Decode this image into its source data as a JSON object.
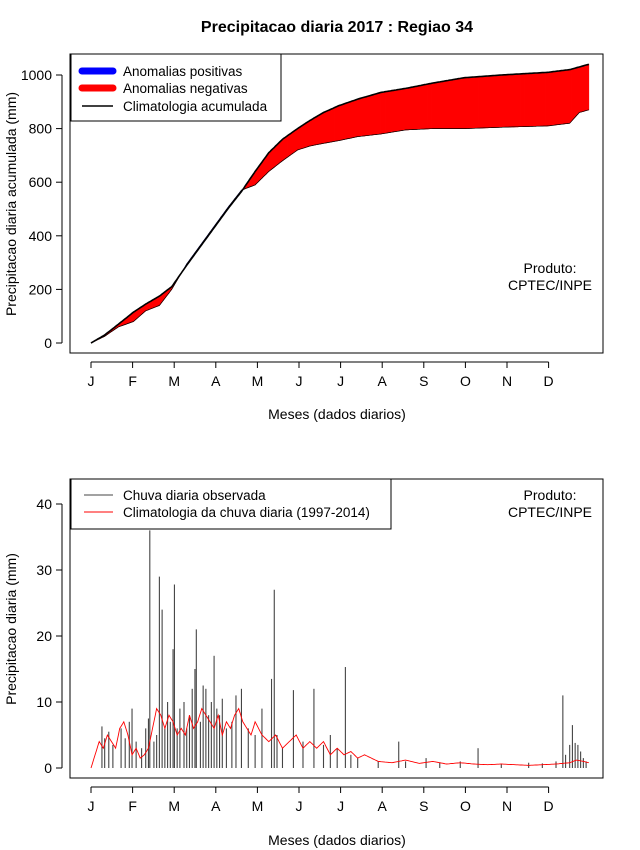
{
  "title": "Precipitacao diaria 2017 : Regiao 34",
  "product_label": [
    "Produto:",
    "CPTEC/INPE"
  ],
  "month_labels": [
    "J",
    "F",
    "M",
    "A",
    "M",
    "J",
    "J",
    "A",
    "S",
    "O",
    "N",
    "D"
  ],
  "chart_data": [
    {
      "type": "area",
      "ylabel": "Precipitacao diaria acumulada (mm)",
      "xlabel": "Meses (dados diarios)",
      "ylim": [
        0,
        1050
      ],
      "yticks": [
        0,
        200,
        400,
        600,
        800,
        1000
      ],
      "legend": {
        "placement": "top-left",
        "entries": [
          {
            "label": "Anomalias positivas",
            "color": "#0000ff"
          },
          {
            "label": "Anomalias negativas",
            "color": "#ff0000"
          },
          {
            "label": "Climatologia acumulada",
            "color": "#000000"
          }
        ]
      },
      "climatology_cumulative": {
        "day": [
          0,
          10,
          20,
          31,
          40,
          50,
          59,
          70,
          80,
          90,
          100,
          110,
          120,
          130,
          140,
          151,
          160,
          170,
          181,
          195,
          212,
          230,
          250,
          273,
          300,
          334,
          350,
          364
        ],
        "mm": [
          0,
          30,
          70,
          115,
          145,
          175,
          210,
          290,
          360,
          430,
          500,
          565,
          640,
          710,
          760,
          800,
          830,
          860,
          885,
          910,
          935,
          950,
          970,
          990,
          1000,
          1010,
          1020,
          1040
        ]
      },
      "observed_cumulative": {
        "day": [
          0,
          10,
          20,
          31,
          40,
          50,
          59,
          70,
          80,
          90,
          100,
          110,
          120,
          130,
          140,
          151,
          160,
          170,
          181,
          195,
          212,
          230,
          250,
          273,
          300,
          334,
          350,
          357,
          364
        ],
        "mm": [
          0,
          25,
          60,
          80,
          120,
          140,
          200,
          295,
          365,
          435,
          505,
          570,
          590,
          640,
          680,
          720,
          735,
          745,
          755,
          770,
          780,
          795,
          800,
          800,
          805,
          810,
          820,
          860,
          870
        ]
      }
    },
    {
      "type": "bar",
      "ylabel": "Precipitacao diaria (mm)",
      "xlabel": "Meses (dados diarios)",
      "ylim": [
        0,
        44
      ],
      "yticks": [
        0,
        10,
        20,
        30,
        40
      ],
      "legend": {
        "placement": "top-left",
        "entries": [
          {
            "label": "Chuva diaria observada",
            "color": "#444444"
          },
          {
            "label": "Climatologia da chuva diaria (1997-2014)",
            "color": "#ff0000"
          }
        ]
      },
      "observed_daily": [
        [
          8,
          6.3
        ],
        [
          10,
          4.5
        ],
        [
          13,
          5.5
        ],
        [
          16,
          3.5
        ],
        [
          22,
          6.0
        ],
        [
          25,
          4.5
        ],
        [
          28,
          7.0
        ],
        [
          30,
          9.0
        ],
        [
          33,
          4.0
        ],
        [
          37,
          3.0
        ],
        [
          40,
          6.0
        ],
        [
          42,
          7.5
        ],
        [
          43,
          36.0
        ],
        [
          46,
          4.0
        ],
        [
          48,
          5.0
        ],
        [
          50,
          29.0
        ],
        [
          52,
          24.0
        ],
        [
          54,
          6.0
        ],
        [
          56,
          10.0
        ],
        [
          58,
          7.0
        ],
        [
          60,
          18.0
        ],
        [
          61,
          27.8
        ],
        [
          63,
          6.0
        ],
        [
          65,
          9.0
        ],
        [
          68,
          10.0
        ],
        [
          70,
          6.0
        ],
        [
          72,
          8.0
        ],
        [
          74,
          12.0
        ],
        [
          76,
          15.0
        ],
        [
          77,
          21.0
        ],
        [
          80,
          7.0
        ],
        [
          82,
          12.5
        ],
        [
          84,
          12.0
        ],
        [
          86,
          8.0
        ],
        [
          88,
          10.0
        ],
        [
          90,
          17.0
        ],
        [
          92,
          9.0
        ],
        [
          94,
          8.0
        ],
        [
          96,
          10.5
        ],
        [
          99,
          6.0
        ],
        [
          103,
          7.0
        ],
        [
          106,
          11.0
        ],
        [
          110,
          12.0
        ],
        [
          115,
          6.0
        ],
        [
          120,
          5.0
        ],
        [
          125,
          9.0
        ],
        [
          132,
          13.5
        ],
        [
          134,
          27.0
        ],
        [
          136,
          5.0
        ],
        [
          140,
          3.0
        ],
        [
          148,
          11.8
        ],
        [
          155,
          4.0
        ],
        [
          163,
          12.0
        ],
        [
          170,
          3.5
        ],
        [
          175,
          5.0
        ],
        [
          180,
          3.0
        ],
        [
          186,
          15.3
        ],
        [
          190,
          2.0
        ],
        [
          195,
          1.5
        ],
        [
          210,
          1.0
        ],
        [
          225,
          4.0
        ],
        [
          230,
          1.0
        ],
        [
          245,
          1.5
        ],
        [
          255,
          0.8
        ],
        [
          270,
          1.0
        ],
        [
          283,
          3.0
        ],
        [
          300,
          0.6
        ],
        [
          320,
          0.8
        ],
        [
          330,
          0.7
        ],
        [
          340,
          1.0
        ],
        [
          345,
          11.0
        ],
        [
          347,
          2.0
        ],
        [
          350,
          3.5
        ],
        [
          352,
          6.5
        ],
        [
          354,
          3.8
        ],
        [
          356,
          3.5
        ],
        [
          358,
          2.5
        ],
        [
          360,
          1.5
        ],
        [
          362,
          1.0
        ]
      ],
      "climatology_daily": {
        "day": [
          0,
          3,
          6,
          9,
          12,
          15,
          18,
          21,
          24,
          27,
          30,
          33,
          36,
          39,
          42,
          45,
          48,
          51,
          54,
          57,
          60,
          63,
          66,
          69,
          72,
          75,
          78,
          81,
          84,
          87,
          90,
          93,
          96,
          99,
          102,
          105,
          108,
          111,
          114,
          117,
          120,
          125,
          130,
          135,
          140,
          145,
          150,
          155,
          160,
          165,
          170,
          175,
          180,
          185,
          190,
          195,
          200,
          210,
          220,
          230,
          240,
          250,
          260,
          270,
          280,
          290,
          300,
          310,
          320,
          330,
          340,
          350,
          355,
          360,
          364
        ],
        "mm": [
          0,
          2,
          4,
          3,
          5,
          4,
          3,
          6,
          7,
          5,
          2,
          3,
          1.5,
          2,
          3,
          6,
          9,
          8,
          6,
          8,
          7,
          5,
          6,
          5,
          8,
          6,
          7,
          9,
          8,
          7,
          6,
          8,
          5,
          7,
          6,
          8,
          9,
          7,
          6,
          5,
          7,
          5,
          4,
          5,
          3,
          4,
          5,
          3,
          4,
          3,
          4,
          2,
          3,
          2,
          2.5,
          1.5,
          2,
          1,
          0.8,
          1.2,
          0.7,
          1,
          0.6,
          0.8,
          0.6,
          0.5,
          0.6,
          0.5,
          0.4,
          0.5,
          0.6,
          0.8,
          1.2,
          1,
          0.8
        ]
      }
    }
  ]
}
